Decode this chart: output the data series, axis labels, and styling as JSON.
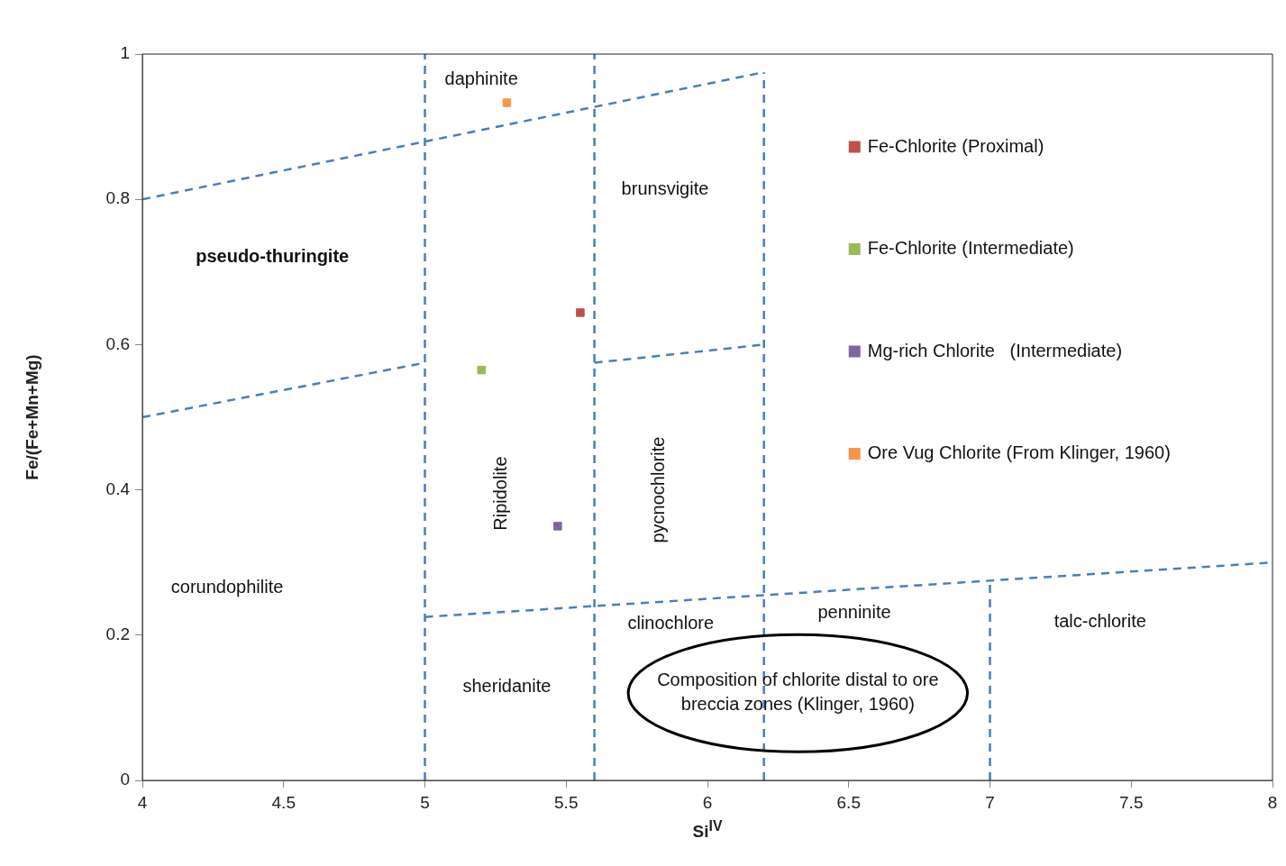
{
  "chart_data": {
    "type": "scatter",
    "xlabel": "Si$^{IV}$",
    "ylabel": "Fe/(Fe+Mn+Mg)",
    "xlim": [
      4,
      8
    ],
    "ylim": [
      0,
      1
    ],
    "xticks": [
      4,
      4.5,
      5,
      5.5,
      6,
      6.5,
      7,
      7.5,
      8
    ],
    "yticks": [
      0,
      0.2,
      0.4,
      0.6,
      0.8,
      1
    ],
    "grid": false,
    "legend": "right",
    "marker": "square",
    "series": [
      {
        "name": "Fe-Chlorite (Proximal)",
        "color": "#c0504d",
        "x": [
          5.55
        ],
        "values": [
          0.644
        ]
      },
      {
        "name": "Fe-Chlorite (Intermediate)",
        "color": "#9bbb59",
        "x": [
          5.2
        ],
        "values": [
          0.565
        ]
      },
      {
        "name": "Mg-rich Chlorite   (Intermediate)",
        "color": "#8064a2",
        "x": [
          5.47
        ],
        "values": [
          0.35
        ]
      },
      {
        "name": "Ore Vug Chlorite (From Klinger, 1960)",
        "color": "#f79646",
        "x": [
          5.29
        ],
        "values": [
          0.933
        ]
      },
      {
        "type": "line",
        "color": "#4a7ebb",
        "line_style": "dashed",
        "marker": "none",
        "x": [
          4,
          6.2
        ],
        "values": [
          0.8,
          0.975
        ]
      },
      {
        "type": "line",
        "color": "#4a7ebb",
        "line_style": "dashed",
        "marker": "none",
        "x": [
          4,
          5
        ],
        "values": [
          0.5,
          0.575
        ]
      },
      {
        "type": "line",
        "color": "#4a7ebb",
        "line_style": "dashed",
        "marker": "none",
        "x": [
          5.6,
          6.2
        ],
        "values": [
          0.575,
          0.6
        ]
      },
      {
        "type": "line",
        "color": "#4a7ebb",
        "line_style": "dashed",
        "marker": "none",
        "x": [
          5,
          8
        ],
        "values": [
          0.225,
          0.3
        ]
      },
      {
        "type": "line",
        "color": "#4a7ebb",
        "line_style": "dashed",
        "marker": "none",
        "x": [
          5,
          5
        ],
        "values": [
          0,
          1
        ]
      },
      {
        "type": "line",
        "color": "#4a7ebb",
        "line_style": "dashed",
        "marker": "none",
        "x": [
          5.6,
          5.6
        ],
        "values": [
          0,
          1
        ]
      },
      {
        "type": "line",
        "color": "#4a7ebb",
        "line_style": "dashed",
        "marker": "none",
        "x": [
          6.2,
          6.2
        ],
        "values": [
          0,
          0.975
        ]
      },
      {
        "type": "line",
        "color": "#4a7ebb",
        "line_style": "dashed",
        "marker": "none",
        "x": [
          7,
          7
        ],
        "values": [
          0,
          0.275
        ]
      }
    ],
    "annotations": [
      "daphinite",
      "brunsvigite",
      "pseudo-thuringite",
      "Ripidolite",
      "pycnochlorite",
      "corundophilite",
      "clinochlore",
      "penninite",
      "talc-chlorite",
      "sheridanite",
      "Composition of chlorite distal to ore breccia zones (Klinger, 1960)"
    ]
  }
}
